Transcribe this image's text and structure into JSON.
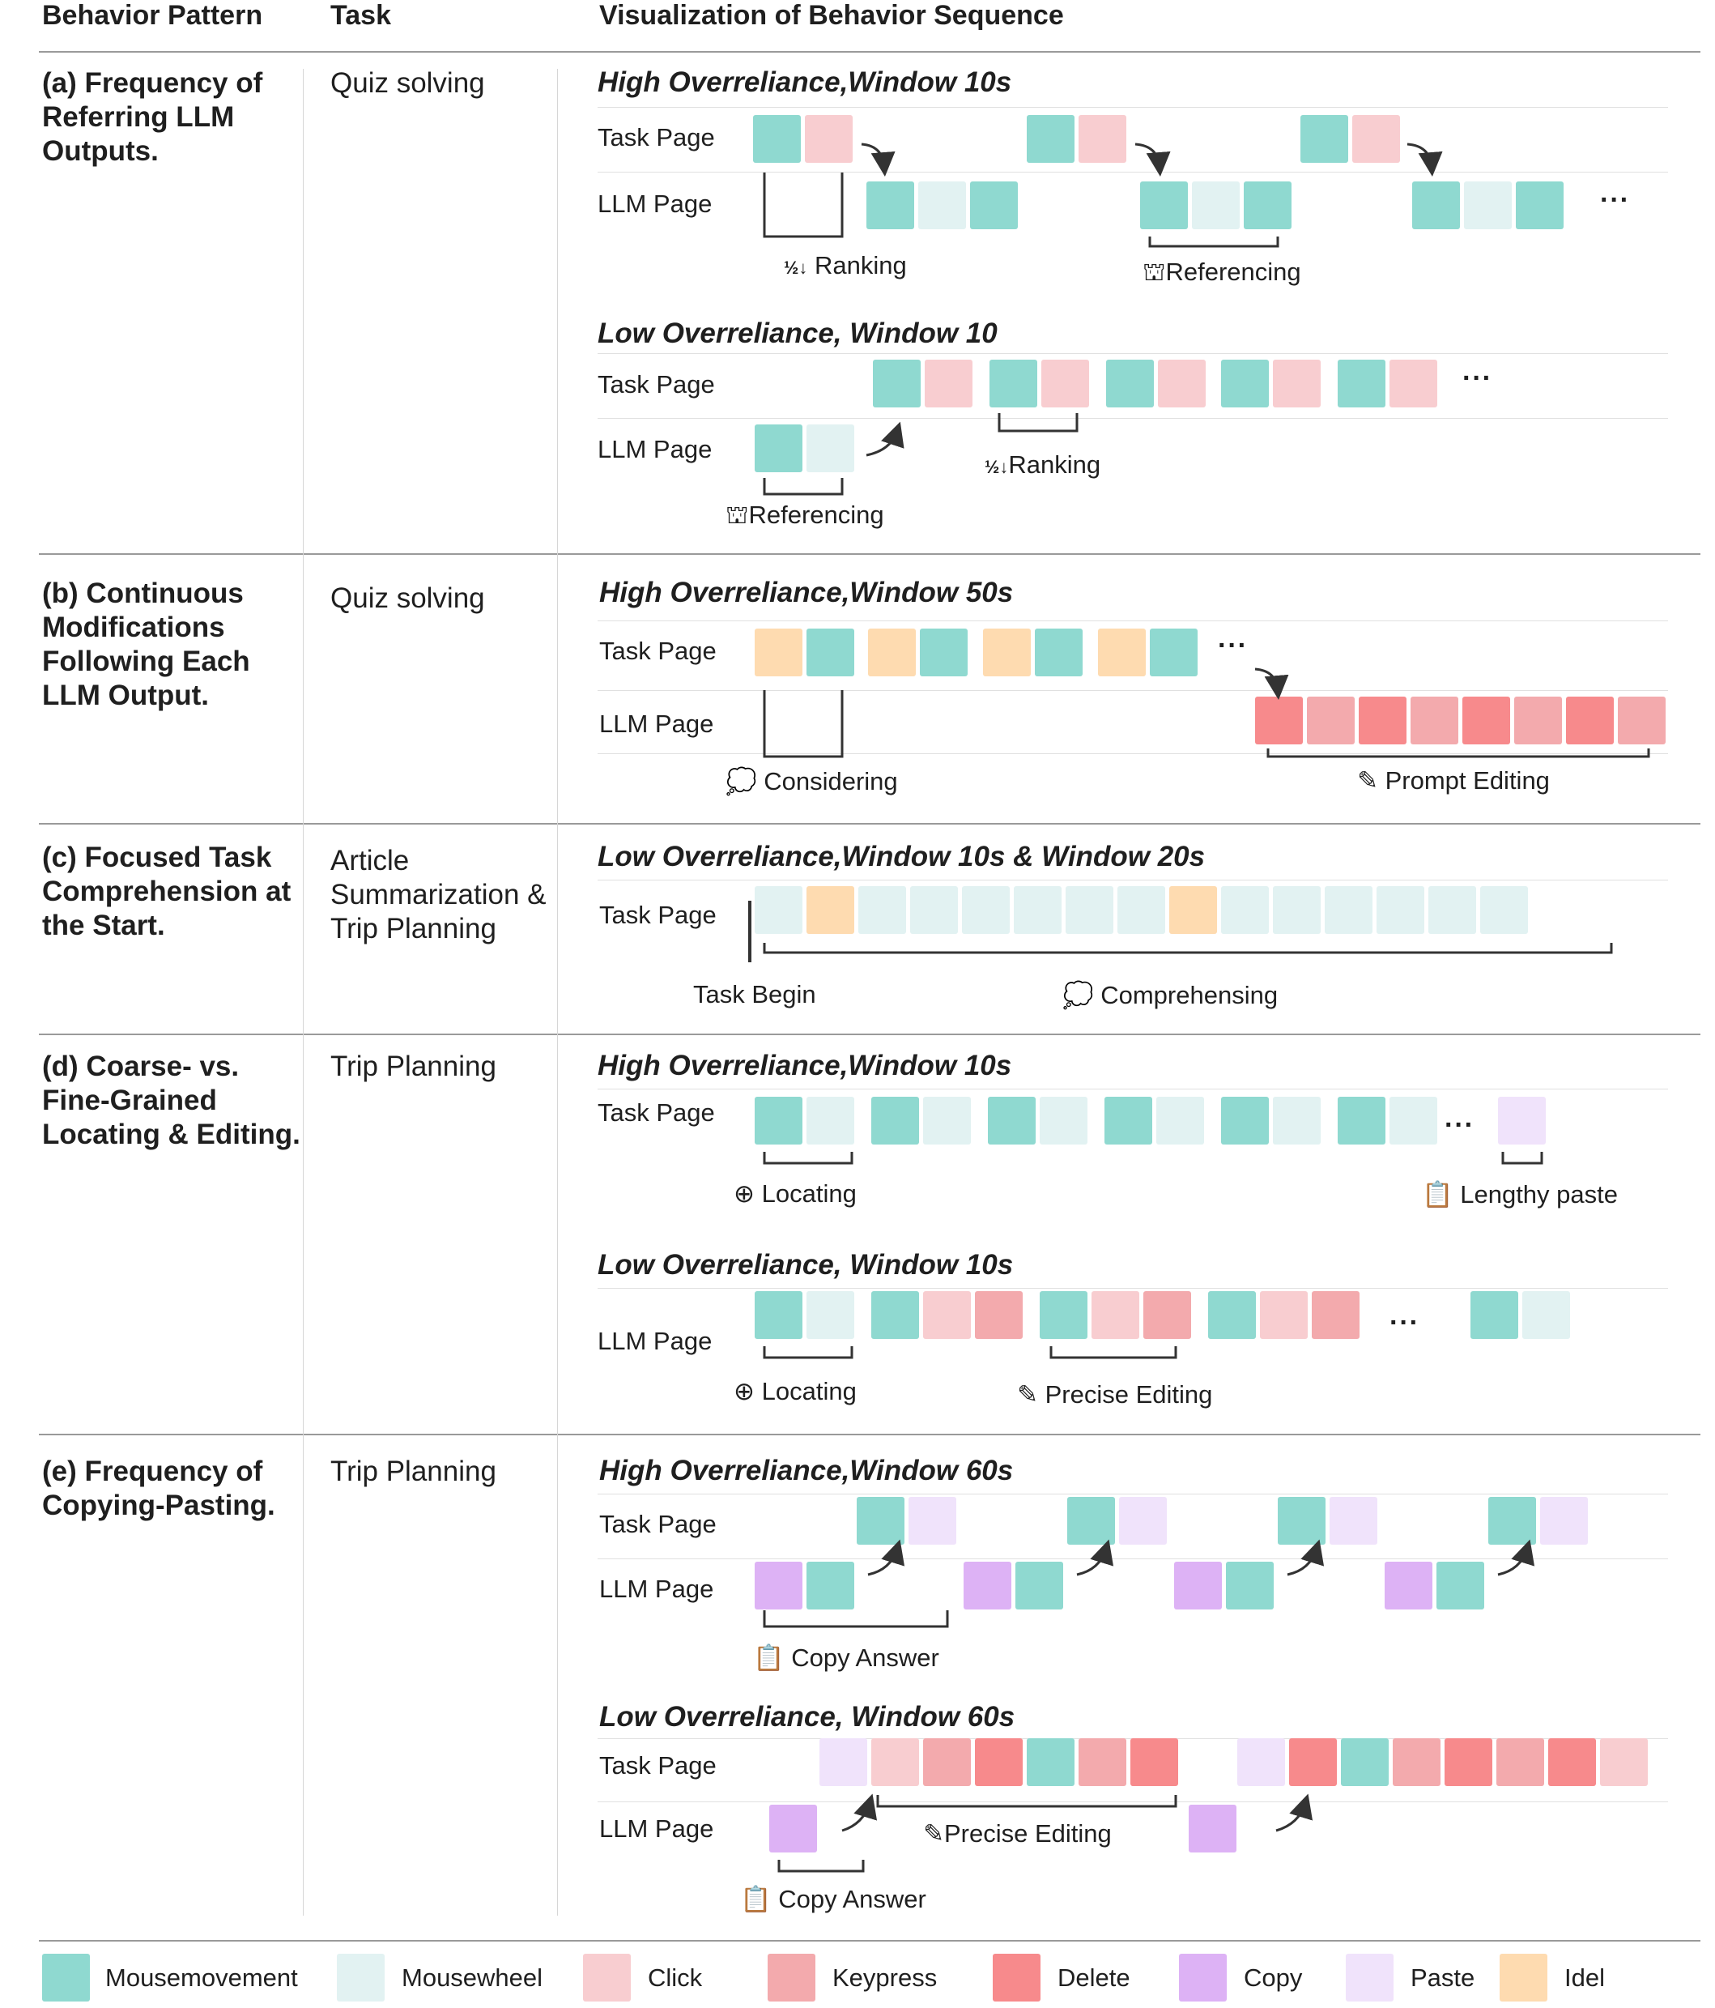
{
  "header": {
    "col1": "Behavior Pattern",
    "col2": "Task",
    "col3": "Visualization of Behavior Sequence"
  },
  "colors": {
    "mousemovement": "#8fd9d0",
    "mousewheel": "#e2f2f2",
    "click": "#f8cdd0",
    "keypress": "#f3aaad",
    "delete": "#f78a8c",
    "copy": "#ddb2f5",
    "paste": "#f0e3fb",
    "idel": "#fedbb0"
  },
  "legend": [
    {
      "key": "mousemovement",
      "label": "Mousemovement"
    },
    {
      "key": "mousewheel",
      "label": "Mousewheel"
    },
    {
      "key": "click",
      "label": "Click"
    },
    {
      "key": "keypress",
      "label": "Keypress"
    },
    {
      "key": "delete",
      "label": "Delete"
    },
    {
      "key": "copy",
      "label": "Copy"
    },
    {
      "key": "paste",
      "label": "Paste"
    },
    {
      "key": "idel",
      "label": "Idel"
    }
  ],
  "rows": {
    "a": {
      "pattern": "(a) Frequency of Referring LLM Outputs.",
      "task": "Quiz solving",
      "high_title": "High Overreliance,Window 10s",
      "low_title": "Low Overreliance, Window 10",
      "task_page": "Task Page",
      "llm_page": "LLM Page",
      "ranking": "Ranking",
      "referencing": "Referencing",
      "low_referencing": "Referencing",
      "low_ranking": "Ranking"
    },
    "b": {
      "pattern": "(b) Continuous Modifications Following Each LLM Output.",
      "task": "Quiz solving",
      "title": "High Overreliance,Window 50s",
      "task_page": "Task Page",
      "llm_page": "LLM Page",
      "considering": "Considering",
      "prompt_editing": "Prompt Editing"
    },
    "c": {
      "pattern": "(c) Focused Task Comprehension at the Start.",
      "task": "Article Summarization & Trip Planning",
      "title": "Low Overreliance,Window 10s & Window 20s",
      "task_page": "Task Page",
      "task_begin": "Task Begin",
      "comprehensing": "Comprehensing"
    },
    "d": {
      "pattern": "(d) Coarse- vs. Fine-Grained Locating & Editing.",
      "task": "Trip Planning",
      "high_title": "High Overreliance,Window 10s",
      "low_title": "Low Overreliance, Window 10s",
      "task_page": "Task Page",
      "llm_page": "LLM Page",
      "locating": "Locating",
      "lengthy_paste": "Lengthy paste",
      "low_locating": "Locating",
      "precise_editing": "Precise Editing"
    },
    "e": {
      "pattern": "(e) Frequency of Copying-Pasting.",
      "task": "Trip Planning",
      "high_title": "High Overreliance,Window 60s",
      "low_title": "Low Overreliance, Window 60s",
      "task_page": "Task Page",
      "llm_page": "LLM Page",
      "low_task_page": "Task Page",
      "low_llm_page": "LLM Page",
      "copy_answer": "Copy Answer",
      "precise_editing": "Precise Editing",
      "low_copy_answer": "Copy Answer"
    }
  },
  "ellipsis": "···"
}
